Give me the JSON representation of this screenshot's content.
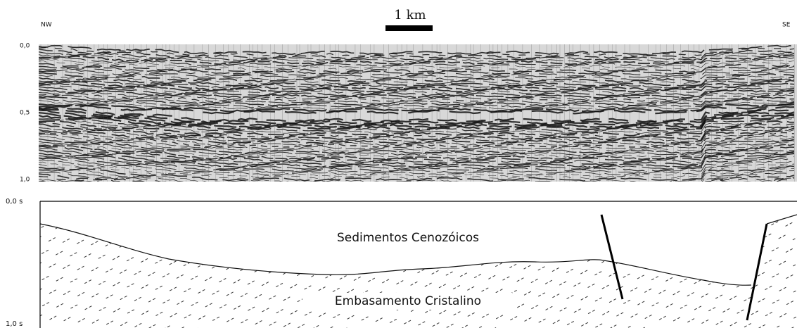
{
  "header": {
    "left": "NW",
    "right": "SE",
    "scale": "1 km"
  },
  "seismic": {
    "ticks": [
      "0,0",
      "0,5",
      "1,0"
    ]
  },
  "section": {
    "ticks": [
      "0,0 s",
      "1,0 s"
    ],
    "upper_unit": "Sedimentos Cenozóicos",
    "lower_unit": "Embasamento Cristalino"
  }
}
